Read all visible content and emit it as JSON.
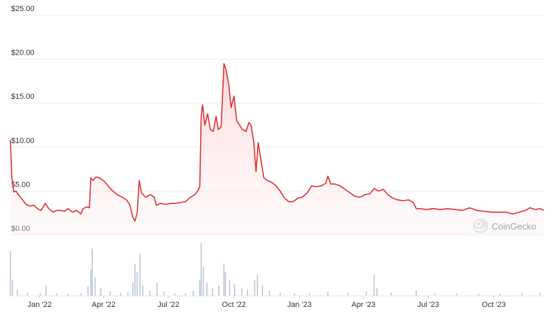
{
  "chart_data": {
    "type": "line",
    "y_ticks": [
      "$0.00",
      "$5.00",
      "$10.00",
      "$15.00",
      "$20.00",
      "$25.00"
    ],
    "ylim": [
      0,
      25
    ],
    "x_ticks": [
      "Jan '22",
      "Apr '22",
      "Jul '22",
      "Oct '22",
      "Jan '23",
      "Apr '23",
      "Jul '23",
      "Oct '23"
    ],
    "x_range": [
      "2021-11-21",
      "2023-12-10"
    ],
    "grid": true,
    "line_color": "#e02d2d",
    "fill_color": "#fde4e4",
    "volume_color": "#b8c4d6",
    "watermark": "CoinGecko",
    "series": [
      {
        "values": [
          [
            "2021-11-21",
            10.8
          ],
          [
            "2021-11-23",
            6.5
          ],
          [
            "2021-11-26",
            4.9
          ],
          [
            "2021-11-29",
            5.0
          ],
          [
            "2021-12-03",
            4.5
          ],
          [
            "2021-12-08",
            4.0
          ],
          [
            "2021-12-13",
            3.5
          ],
          [
            "2021-12-18",
            3.3
          ],
          [
            "2021-12-24",
            3.4
          ],
          [
            "2021-12-29",
            3.0
          ],
          [
            "2022-01-03",
            2.8
          ],
          [
            "2022-01-09",
            3.6
          ],
          [
            "2022-01-14",
            3.0
          ],
          [
            "2022-01-20",
            2.6
          ],
          [
            "2022-01-25",
            2.8
          ],
          [
            "2022-01-30",
            2.8
          ],
          [
            "2022-02-05",
            2.7
          ],
          [
            "2022-02-10",
            3.0
          ],
          [
            "2022-02-16",
            2.6
          ],
          [
            "2022-02-22",
            2.8
          ],
          [
            "2022-02-28",
            2.4
          ],
          [
            "2022-03-03",
            3.0
          ],
          [
            "2022-03-08",
            3.2
          ],
          [
            "2022-03-12",
            3.1
          ],
          [
            "2022-03-14",
            6.5
          ],
          [
            "2022-03-17",
            6.2
          ],
          [
            "2022-03-21",
            6.6
          ],
          [
            "2022-03-26",
            6.5
          ],
          [
            "2022-04-02",
            6.1
          ],
          [
            "2022-04-08",
            5.5
          ],
          [
            "2022-04-14",
            5.0
          ],
          [
            "2022-04-20",
            4.6
          ],
          [
            "2022-04-27",
            4.3
          ],
          [
            "2022-05-03",
            4.0
          ],
          [
            "2022-05-08",
            3.4
          ],
          [
            "2022-05-12",
            2.0
          ],
          [
            "2022-05-15",
            1.6
          ],
          [
            "2022-05-18",
            2.5
          ],
          [
            "2022-05-21",
            6.2
          ],
          [
            "2022-05-24",
            4.8
          ],
          [
            "2022-05-30",
            4.3
          ],
          [
            "2022-06-06",
            4.6
          ],
          [
            "2022-06-11",
            4.3
          ],
          [
            "2022-06-14",
            3.4
          ],
          [
            "2022-06-20",
            3.6
          ],
          [
            "2022-06-27",
            3.5
          ],
          [
            "2022-07-04",
            3.6
          ],
          [
            "2022-07-11",
            3.6
          ],
          [
            "2022-07-18",
            3.7
          ],
          [
            "2022-07-25",
            3.8
          ],
          [
            "2022-08-01",
            4.3
          ],
          [
            "2022-08-07",
            4.6
          ],
          [
            "2022-08-11",
            5.0
          ],
          [
            "2022-08-14",
            5.5
          ],
          [
            "2022-08-16",
            13.5
          ],
          [
            "2022-08-18",
            14.8
          ],
          [
            "2022-08-21",
            12.5
          ],
          [
            "2022-08-25",
            13.8
          ],
          [
            "2022-08-29",
            12.0
          ],
          [
            "2022-09-02",
            11.8
          ],
          [
            "2022-09-06",
            13.5
          ],
          [
            "2022-09-09",
            12.0
          ],
          [
            "2022-09-13",
            12.3
          ],
          [
            "2022-09-17",
            19.5
          ],
          [
            "2022-09-20",
            18.8
          ],
          [
            "2022-09-24",
            17.0
          ],
          [
            "2022-09-27",
            14.5
          ],
          [
            "2022-10-01",
            15.8
          ],
          [
            "2022-10-05",
            13.0
          ],
          [
            "2022-10-09",
            12.5
          ],
          [
            "2022-10-13",
            12.0
          ],
          [
            "2022-10-18",
            11.8
          ],
          [
            "2022-10-22",
            12.8
          ],
          [
            "2022-10-25",
            12.5
          ],
          [
            "2022-10-29",
            10.5
          ],
          [
            "2022-11-01",
            7.2
          ],
          [
            "2022-11-04",
            10.5
          ],
          [
            "2022-11-08",
            8.5
          ],
          [
            "2022-11-12",
            6.5
          ],
          [
            "2022-11-17",
            6.2
          ],
          [
            "2022-11-23",
            6.0
          ],
          [
            "2022-11-29",
            5.6
          ],
          [
            "2022-12-05",
            5.0
          ],
          [
            "2022-12-11",
            4.2
          ],
          [
            "2022-12-17",
            3.8
          ],
          [
            "2022-12-23",
            3.8
          ],
          [
            "2022-12-30",
            4.2
          ],
          [
            "2023-01-05",
            4.3
          ],
          [
            "2023-01-12",
            4.8
          ],
          [
            "2023-01-18",
            5.6
          ],
          [
            "2023-01-25",
            5.5
          ],
          [
            "2023-02-01",
            5.6
          ],
          [
            "2023-02-07",
            5.9
          ],
          [
            "2023-02-10",
            6.7
          ],
          [
            "2023-02-14",
            5.8
          ],
          [
            "2023-02-20",
            5.8
          ],
          [
            "2023-02-27",
            5.6
          ],
          [
            "2023-03-06",
            5.2
          ],
          [
            "2023-03-13",
            4.8
          ],
          [
            "2023-03-20",
            4.4
          ],
          [
            "2023-03-27",
            4.3
          ],
          [
            "2023-04-03",
            4.6
          ],
          [
            "2023-04-10",
            4.7
          ],
          [
            "2023-04-16",
            5.3
          ],
          [
            "2023-04-22",
            5.0
          ],
          [
            "2023-04-29",
            5.2
          ],
          [
            "2023-05-05",
            4.6
          ],
          [
            "2023-05-12",
            4.2
          ],
          [
            "2023-05-19",
            4.0
          ],
          [
            "2023-05-27",
            3.9
          ],
          [
            "2023-06-03",
            4.0
          ],
          [
            "2023-06-10",
            3.7
          ],
          [
            "2023-06-14",
            3.0
          ],
          [
            "2023-06-20",
            3.0
          ],
          [
            "2023-06-28",
            2.9
          ],
          [
            "2023-07-08",
            3.0
          ],
          [
            "2023-07-18",
            2.9
          ],
          [
            "2023-07-28",
            3.0
          ],
          [
            "2023-08-08",
            2.9
          ],
          [
            "2023-08-18",
            2.8
          ],
          [
            "2023-08-28",
            3.1
          ],
          [
            "2023-09-07",
            2.8
          ],
          [
            "2023-09-18",
            2.7
          ],
          [
            "2023-09-28",
            2.6
          ],
          [
            "2023-10-08",
            2.6
          ],
          [
            "2023-10-18",
            2.6
          ],
          [
            "2023-10-28",
            2.4
          ],
          [
            "2023-11-06",
            2.6
          ],
          [
            "2023-11-14",
            2.8
          ],
          [
            "2023-11-21",
            3.1
          ],
          [
            "2023-11-28",
            2.9
          ],
          [
            "2023-12-05",
            3.0
          ],
          [
            "2023-12-10",
            2.8
          ]
        ]
      }
    ],
    "volume": [
      [
        "2021-11-21",
        0.85
      ],
      [
        "2021-11-24",
        0.3
      ],
      [
        "2021-12-01",
        0.12
      ],
      [
        "2021-12-15",
        0.06
      ],
      [
        "2022-01-02",
        0.05
      ],
      [
        "2022-01-10",
        0.2
      ],
      [
        "2022-01-25",
        0.05
      ],
      [
        "2022-02-10",
        0.04
      ],
      [
        "2022-02-28",
        0.05
      ],
      [
        "2022-03-10",
        0.18
      ],
      [
        "2022-03-14",
        0.5
      ],
      [
        "2022-03-16",
        0.9
      ],
      [
        "2022-03-20",
        0.35
      ],
      [
        "2022-03-28",
        0.15
      ],
      [
        "2022-04-10",
        0.08
      ],
      [
        "2022-04-25",
        0.06
      ],
      [
        "2022-05-05",
        0.08
      ],
      [
        "2022-05-12",
        0.25
      ],
      [
        "2022-05-15",
        0.6
      ],
      [
        "2022-05-18",
        0.45
      ],
      [
        "2022-05-22",
        0.8
      ],
      [
        "2022-05-26",
        0.2
      ],
      [
        "2022-06-05",
        0.1
      ],
      [
        "2022-06-15",
        0.25
      ],
      [
        "2022-06-25",
        0.08
      ],
      [
        "2022-07-10",
        0.05
      ],
      [
        "2022-07-25",
        0.05
      ],
      [
        "2022-08-05",
        0.1
      ],
      [
        "2022-08-14",
        0.3
      ],
      [
        "2022-08-16",
        1.0
      ],
      [
        "2022-08-19",
        0.55
      ],
      [
        "2022-08-24",
        0.25
      ],
      [
        "2022-09-01",
        0.15
      ],
      [
        "2022-09-10",
        0.2
      ],
      [
        "2022-09-17",
        0.62
      ],
      [
        "2022-09-19",
        0.45
      ],
      [
        "2022-09-25",
        0.3
      ],
      [
        "2022-10-02",
        0.22
      ],
      [
        "2022-10-12",
        0.15
      ],
      [
        "2022-10-20",
        0.12
      ],
      [
        "2022-10-30",
        0.3
      ],
      [
        "2022-11-03",
        0.4
      ],
      [
        "2022-11-10",
        0.2
      ],
      [
        "2022-11-20",
        0.1
      ],
      [
        "2022-12-05",
        0.06
      ],
      [
        "2022-12-25",
        0.05
      ],
      [
        "2023-01-15",
        0.05
      ],
      [
        "2023-02-10",
        0.08
      ],
      [
        "2023-03-10",
        0.06
      ],
      [
        "2023-04-05",
        0.08
      ],
      [
        "2023-04-16",
        0.4
      ],
      [
        "2023-04-20",
        0.15
      ],
      [
        "2023-05-10",
        0.06
      ],
      [
        "2023-06-14",
        0.1
      ],
      [
        "2023-07-10",
        0.05
      ],
      [
        "2023-08-10",
        0.05
      ],
      [
        "2023-09-10",
        0.04
      ],
      [
        "2023-10-10",
        0.04
      ],
      [
        "2023-11-10",
        0.05
      ],
      [
        "2023-12-05",
        0.06
      ]
    ]
  }
}
